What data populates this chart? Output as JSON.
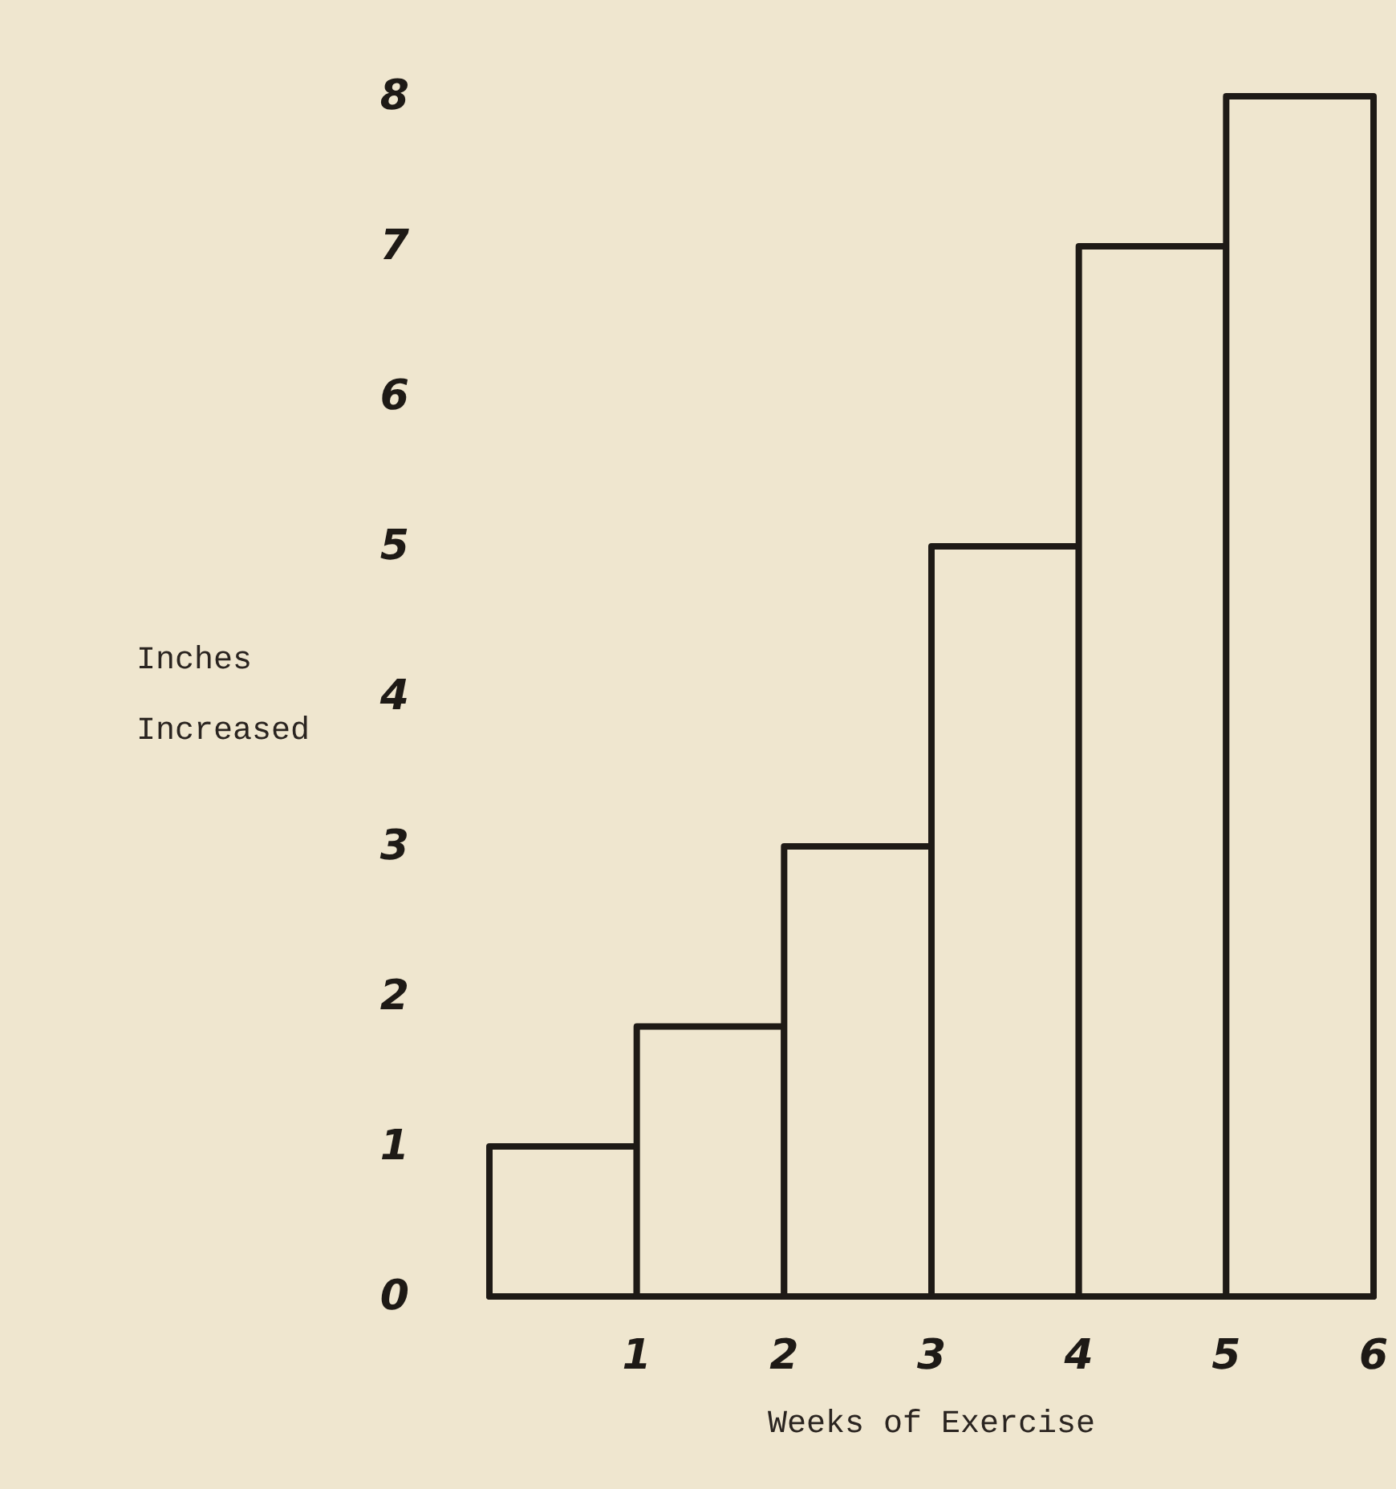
{
  "chart_data": {
    "type": "histogram",
    "xlabel": "Weeks of Exercise",
    "ylabel": "Inches\nIncreased",
    "bins": [
      0,
      1,
      2,
      3,
      4,
      5,
      6
    ],
    "values": [
      1,
      1.8,
      3,
      5,
      7,
      8
    ],
    "color": "#efe6cf",
    "xlim": [
      0,
      6
    ],
    "xticks": [
      1,
      2,
      3,
      4,
      5,
      6
    ],
    "ylim": [
      0,
      8
    ],
    "yticks": [
      0,
      1,
      2,
      3,
      4,
      5,
      6,
      7,
      8
    ],
    "grid": false
  }
}
